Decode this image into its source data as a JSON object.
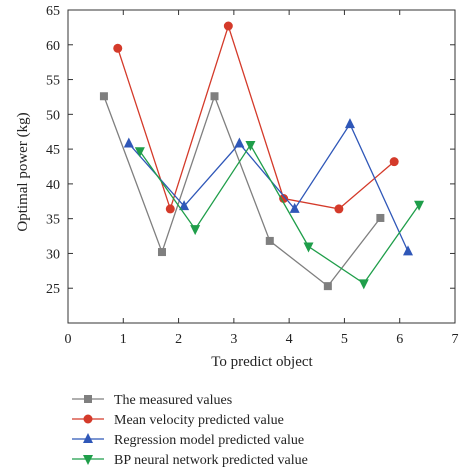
{
  "chart_data": {
    "type": "line",
    "xlabel": "To predict object",
    "ylabel": "Optimal power (kg)",
    "xlim": [
      0,
      7
    ],
    "ylim": [
      20,
      65
    ],
    "xticks": [
      0,
      1,
      2,
      3,
      4,
      5,
      6,
      7
    ],
    "yticks": [
      25,
      30,
      35,
      40,
      45,
      50,
      55,
      60,
      65
    ],
    "grid": false,
    "legend_position": "bottom",
    "series": [
      {
        "name": "The measured values",
        "color": "#7f7f7f",
        "marker": "square",
        "x": [
          0.65,
          1.7,
          2.65,
          3.65,
          4.7,
          5.65
        ],
        "y": [
          52.6,
          30.2,
          52.6,
          31.8,
          25.3,
          35.1
        ]
      },
      {
        "name": "Mean velocity predicted value",
        "color": "#d43a2a",
        "marker": "circle",
        "x": [
          0.9,
          1.85,
          2.9,
          3.9,
          4.9,
          5.9
        ],
        "y": [
          59.5,
          36.4,
          62.7,
          37.9,
          36.4,
          43.2
        ]
      },
      {
        "name": "Regression model predicted value",
        "color": "#2f57b8",
        "marker": "triangle-up",
        "x": [
          1.1,
          2.1,
          3.1,
          4.1,
          5.1,
          6.15
        ],
        "y": [
          45.8,
          36.8,
          45.8,
          36.4,
          48.6,
          30.3
        ]
      },
      {
        "name": "BP neural network predicted value",
        "color": "#1f9e4a",
        "marker": "triangle-down",
        "x": [
          1.3,
          2.3,
          3.3,
          4.35,
          5.35,
          6.35
        ],
        "y": [
          44.7,
          33.5,
          45.6,
          31.0,
          25.7,
          37.0
        ]
      }
    ]
  }
}
